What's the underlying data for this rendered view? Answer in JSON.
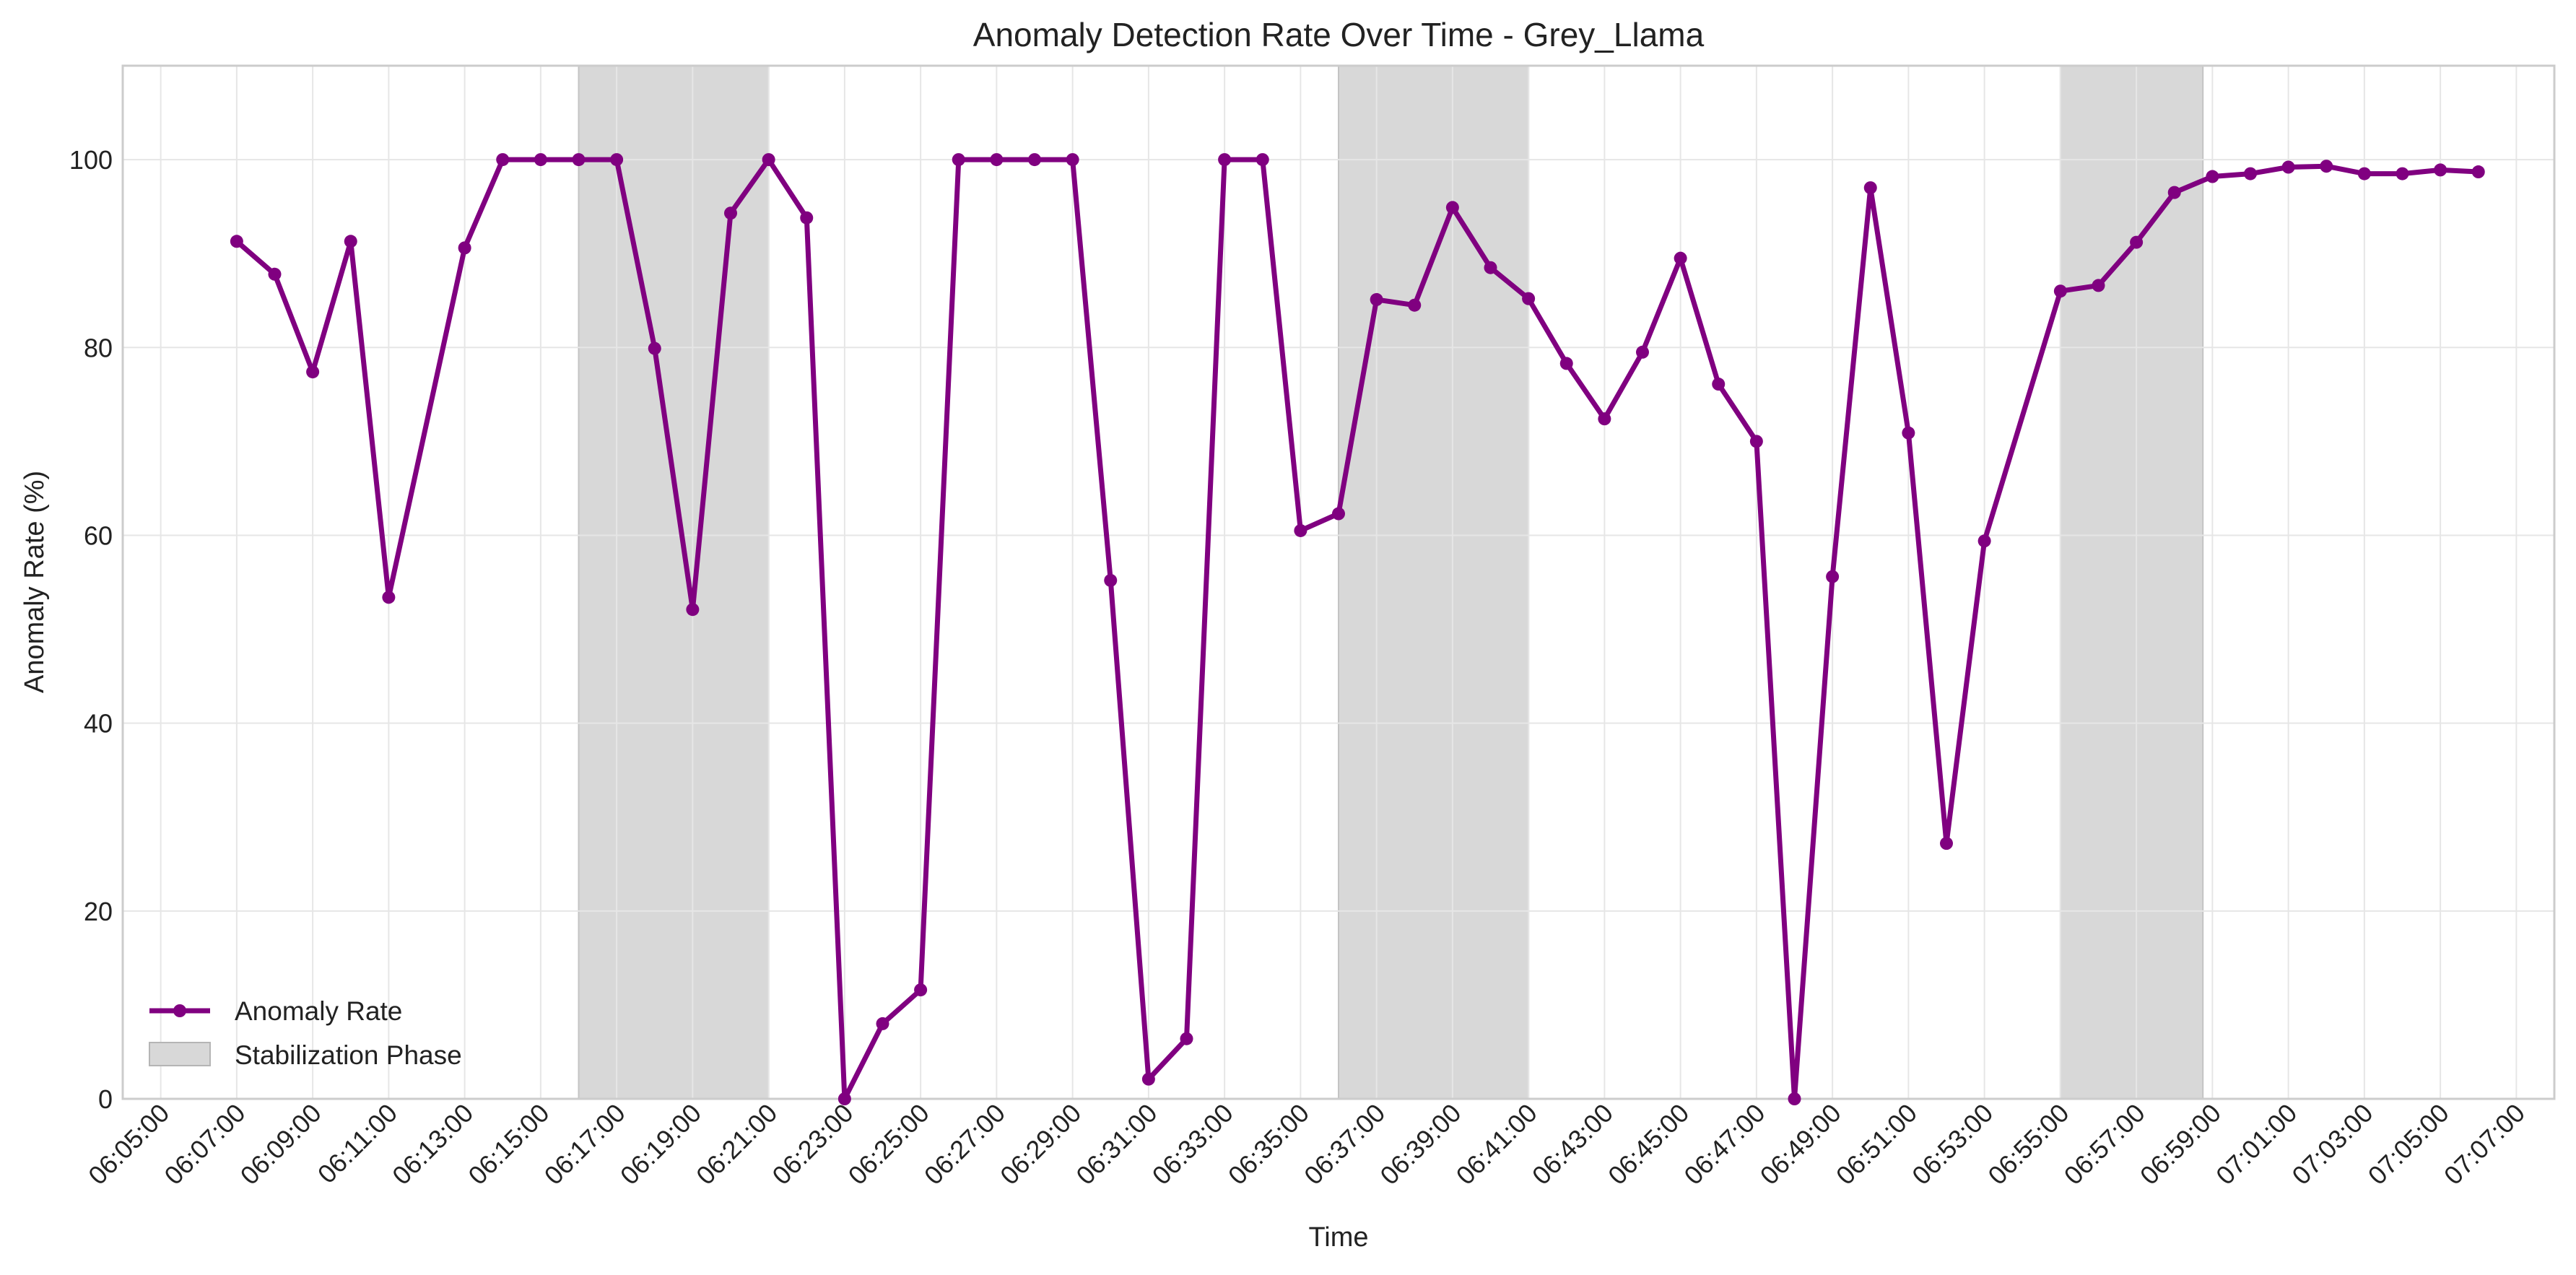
{
  "chart_data": {
    "type": "line",
    "title": "Anomaly Detection Rate Over Time - Grey_Llama",
    "xlabel": "Time",
    "ylabel": "Anomaly Rate (%)",
    "x_tick_labels": [
      "06:05:00",
      "06:07:00",
      "06:09:00",
      "06:11:00",
      "06:13:00",
      "06:15:00",
      "06:17:00",
      "06:19:00",
      "06:21:00",
      "06:23:00",
      "06:25:00",
      "06:27:00",
      "06:29:00",
      "06:31:00",
      "06:33:00",
      "06:35:00",
      "06:37:00",
      "06:39:00",
      "06:41:00",
      "06:43:00",
      "06:45:00",
      "06:47:00",
      "06:49:00",
      "06:51:00",
      "06:53:00",
      "06:55:00",
      "06:57:00",
      "06:59:00",
      "07:01:00",
      "07:03:00",
      "07:05:00",
      "07:07:00"
    ],
    "xlim": [
      "06:04:00",
      "07:08:00"
    ],
    "y_ticks": [
      0,
      20,
      40,
      60,
      80,
      100
    ],
    "ylim": [
      0,
      110
    ],
    "grid": true,
    "legend_position": "lower-left",
    "series": [
      {
        "name": "Anomaly Rate",
        "color": "#800080",
        "marker": "circle",
        "x": [
          "06:07:00",
          "06:08:00",
          "06:09:00",
          "06:10:00",
          "06:11:00",
          "06:13:00",
          "06:14:00",
          "06:15:00",
          "06:16:00",
          "06:17:00",
          "06:18:00",
          "06:19:00",
          "06:20:00",
          "06:21:00",
          "06:22:00",
          "06:23:00",
          "06:24:00",
          "06:25:00",
          "06:26:00",
          "06:27:00",
          "06:28:00",
          "06:29:00",
          "06:30:00",
          "06:31:00",
          "06:32:00",
          "06:33:00",
          "06:34:00",
          "06:35:00",
          "06:36:00",
          "06:37:00",
          "06:38:00",
          "06:39:00",
          "06:40:00",
          "06:41:00",
          "06:42:00",
          "06:43:00",
          "06:44:00",
          "06:45:00",
          "06:46:00",
          "06:47:00",
          "06:48:00",
          "06:49:00",
          "06:50:00",
          "06:51:00",
          "06:52:00",
          "06:53:00",
          "06:55:00",
          "06:56:00",
          "06:57:00",
          "06:58:00",
          "06:59:00",
          "07:00:00",
          "07:01:00",
          "07:02:00",
          "07:03:00",
          "07:04:00",
          "07:05:00",
          "07:06:00"
        ],
        "values": [
          91.3,
          87.8,
          77.4,
          91.3,
          53.4,
          90.6,
          100,
          100,
          100,
          100,
          79.9,
          52.1,
          94.3,
          100,
          93.8,
          0,
          8.0,
          11.6,
          100,
          100,
          100,
          100,
          55.2,
          2.1,
          6.4,
          100,
          100,
          60.5,
          62.3,
          85.1,
          84.5,
          94.9,
          88.5,
          85.2,
          78.3,
          72.4,
          79.5,
          89.5,
          76.1,
          70.0,
          0,
          55.6,
          97.0,
          70.9,
          27.2,
          59.4,
          86.0,
          86.6,
          91.2,
          96.5,
          98.2,
          98.5,
          99.2,
          99.3,
          98.5,
          98.5,
          98.9,
          98.7
        ]
      }
    ],
    "shaded_regions": {
      "name": "Stabilization Phase",
      "color": "#d8d8d8",
      "ranges": [
        [
          "06:16:00",
          "06:21:00"
        ],
        [
          "06:36:00",
          "06:41:00"
        ],
        [
          "06:55:00",
          "06:58:45"
        ]
      ]
    }
  }
}
